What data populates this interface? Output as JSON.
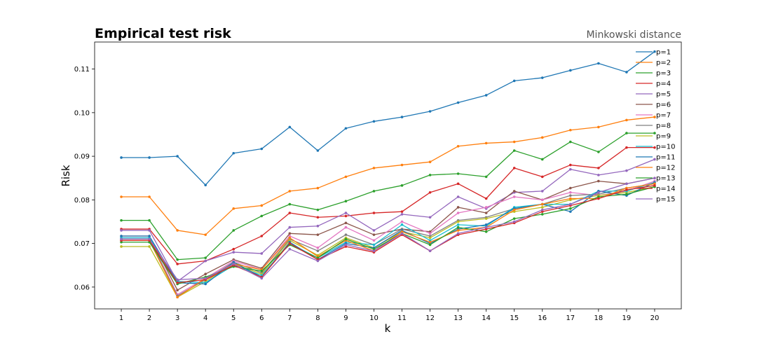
{
  "chart_data": {
    "type": "line",
    "title": "Empirical test risk",
    "subtitle": "Minkowski distance",
    "xlabel": "k",
    "ylabel": "Risk",
    "xlim": [
      0.05,
      20.95
    ],
    "ylim": [
      0.055,
      0.1162
    ],
    "x": [
      1,
      2,
      3,
      4,
      5,
      6,
      7,
      8,
      9,
      10,
      11,
      12,
      13,
      14,
      15,
      16,
      17,
      18,
      19,
      20
    ],
    "yticks": [
      0.06,
      0.07,
      0.08,
      0.09,
      0.1,
      0.11
    ],
    "ytick_labels": [
      "0.06",
      "0.07",
      "0.08",
      "0.09",
      "0.10",
      "0.11"
    ],
    "grid": false,
    "legend_position": "top-right",
    "series": [
      {
        "name": "p=1",
        "color": "#1f77b4",
        "values": [
          0.0897,
          0.0897,
          0.09,
          0.0834,
          0.0907,
          0.0917,
          0.0967,
          0.0913,
          0.0964,
          0.098,
          0.099,
          0.1003,
          0.1023,
          0.104,
          0.1073,
          0.108,
          0.1097,
          0.1113,
          0.1093,
          0.114
        ]
      },
      {
        "name": "p=2",
        "color": "#ff7f0e",
        "values": [
          0.0807,
          0.0807,
          0.073,
          0.072,
          0.078,
          0.0787,
          0.082,
          0.0827,
          0.0853,
          0.0873,
          0.088,
          0.0887,
          0.0923,
          0.093,
          0.0933,
          0.0943,
          0.096,
          0.0967,
          0.0983,
          0.099
        ]
      },
      {
        "name": "p=3",
        "color": "#2ca02c",
        "values": [
          0.0753,
          0.0753,
          0.0663,
          0.0667,
          0.073,
          0.0763,
          0.079,
          0.0777,
          0.0797,
          0.082,
          0.0833,
          0.0857,
          0.086,
          0.0853,
          0.0913,
          0.0893,
          0.0933,
          0.091,
          0.0953,
          0.0953
        ]
      },
      {
        "name": "p=4",
        "color": "#d62728",
        "values": [
          0.0733,
          0.0733,
          0.0653,
          0.066,
          0.0687,
          0.0717,
          0.077,
          0.076,
          0.0763,
          0.077,
          0.0773,
          0.0817,
          0.0837,
          0.0803,
          0.0873,
          0.0853,
          0.088,
          0.0873,
          0.092,
          0.092
        ]
      },
      {
        "name": "p=5",
        "color": "#9467bd",
        "values": [
          0.073,
          0.073,
          0.0613,
          0.066,
          0.068,
          0.0677,
          0.0737,
          0.074,
          0.077,
          0.073,
          0.0767,
          0.076,
          0.0807,
          0.078,
          0.0817,
          0.082,
          0.087,
          0.0857,
          0.0867,
          0.0893
        ]
      },
      {
        "name": "p=6",
        "color": "#8c564b",
        "values": [
          0.0717,
          0.0717,
          0.0593,
          0.063,
          0.0663,
          0.0643,
          0.0723,
          0.072,
          0.0747,
          0.072,
          0.0733,
          0.0727,
          0.0783,
          0.077,
          0.082,
          0.08,
          0.0827,
          0.0843,
          0.0837,
          0.085
        ]
      },
      {
        "name": "p=7",
        "color": "#e377c2",
        "values": [
          0.0713,
          0.0713,
          0.0583,
          0.062,
          0.066,
          0.064,
          0.0717,
          0.069,
          0.0737,
          0.0707,
          0.075,
          0.0723,
          0.077,
          0.0783,
          0.0807,
          0.08,
          0.0817,
          0.081,
          0.082,
          0.0843
        ]
      },
      {
        "name": "p=8",
        "color": "#7f7f7f",
        "values": [
          0.071,
          0.071,
          0.058,
          0.0617,
          0.0657,
          0.0633,
          0.071,
          0.0683,
          0.072,
          0.0697,
          0.0733,
          0.0717,
          0.0753,
          0.076,
          0.078,
          0.079,
          0.081,
          0.0813,
          0.0827,
          0.0837
        ]
      },
      {
        "name": "p=9",
        "color": "#bcbd22",
        "values": [
          0.0693,
          0.0693,
          0.0577,
          0.0613,
          0.0653,
          0.063,
          0.0707,
          0.0673,
          0.0713,
          0.069,
          0.0727,
          0.0713,
          0.075,
          0.0757,
          0.0773,
          0.0783,
          0.08,
          0.081,
          0.0817,
          0.083
        ]
      },
      {
        "name": "p=10",
        "color": "#17becf",
        "values": [
          0.0713,
          0.0713,
          0.0613,
          0.061,
          0.065,
          0.0627,
          0.07,
          0.0667,
          0.0703,
          0.0697,
          0.0743,
          0.0707,
          0.0743,
          0.074,
          0.0783,
          0.079,
          0.079,
          0.082,
          0.082,
          0.084
        ]
      },
      {
        "name": "p=11",
        "color": "#1f77b4",
        "values": [
          0.0717,
          0.0717,
          0.061,
          0.0607,
          0.0657,
          0.0623,
          0.0703,
          0.0663,
          0.07,
          0.069,
          0.073,
          0.07,
          0.0733,
          0.0743,
          0.078,
          0.079,
          0.0773,
          0.082,
          0.081,
          0.084
        ]
      },
      {
        "name": "p=12",
        "color": "#ff7f0e",
        "values": [
          0.0707,
          0.0707,
          0.0577,
          0.062,
          0.0653,
          0.064,
          0.0713,
          0.067,
          0.0707,
          0.0683,
          0.0727,
          0.0703,
          0.073,
          0.0737,
          0.0777,
          0.079,
          0.0803,
          0.0803,
          0.0827,
          0.0837
        ]
      },
      {
        "name": "p=13",
        "color": "#2ca02c",
        "values": [
          0.0703,
          0.0703,
          0.0607,
          0.0623,
          0.0647,
          0.0637,
          0.0697,
          0.0667,
          0.071,
          0.0687,
          0.0723,
          0.0697,
          0.0737,
          0.0727,
          0.0757,
          0.0767,
          0.078,
          0.0807,
          0.0813,
          0.083
        ]
      },
      {
        "name": "p=14",
        "color": "#d62728",
        "values": [
          0.0707,
          0.0707,
          0.061,
          0.0617,
          0.065,
          0.0623,
          0.07,
          0.0663,
          0.0693,
          0.068,
          0.072,
          0.0683,
          0.072,
          0.0733,
          0.0747,
          0.0773,
          0.0787,
          0.0803,
          0.0823,
          0.0833
        ]
      },
      {
        "name": "p=15",
        "color": "#9467bd",
        "values": [
          0.071,
          0.071,
          0.0617,
          0.062,
          0.0653,
          0.062,
          0.0687,
          0.066,
          0.0697,
          0.0683,
          0.0723,
          0.0683,
          0.0723,
          0.0737,
          0.075,
          0.0777,
          0.079,
          0.0817,
          0.0837,
          0.085
        ]
      }
    ]
  }
}
